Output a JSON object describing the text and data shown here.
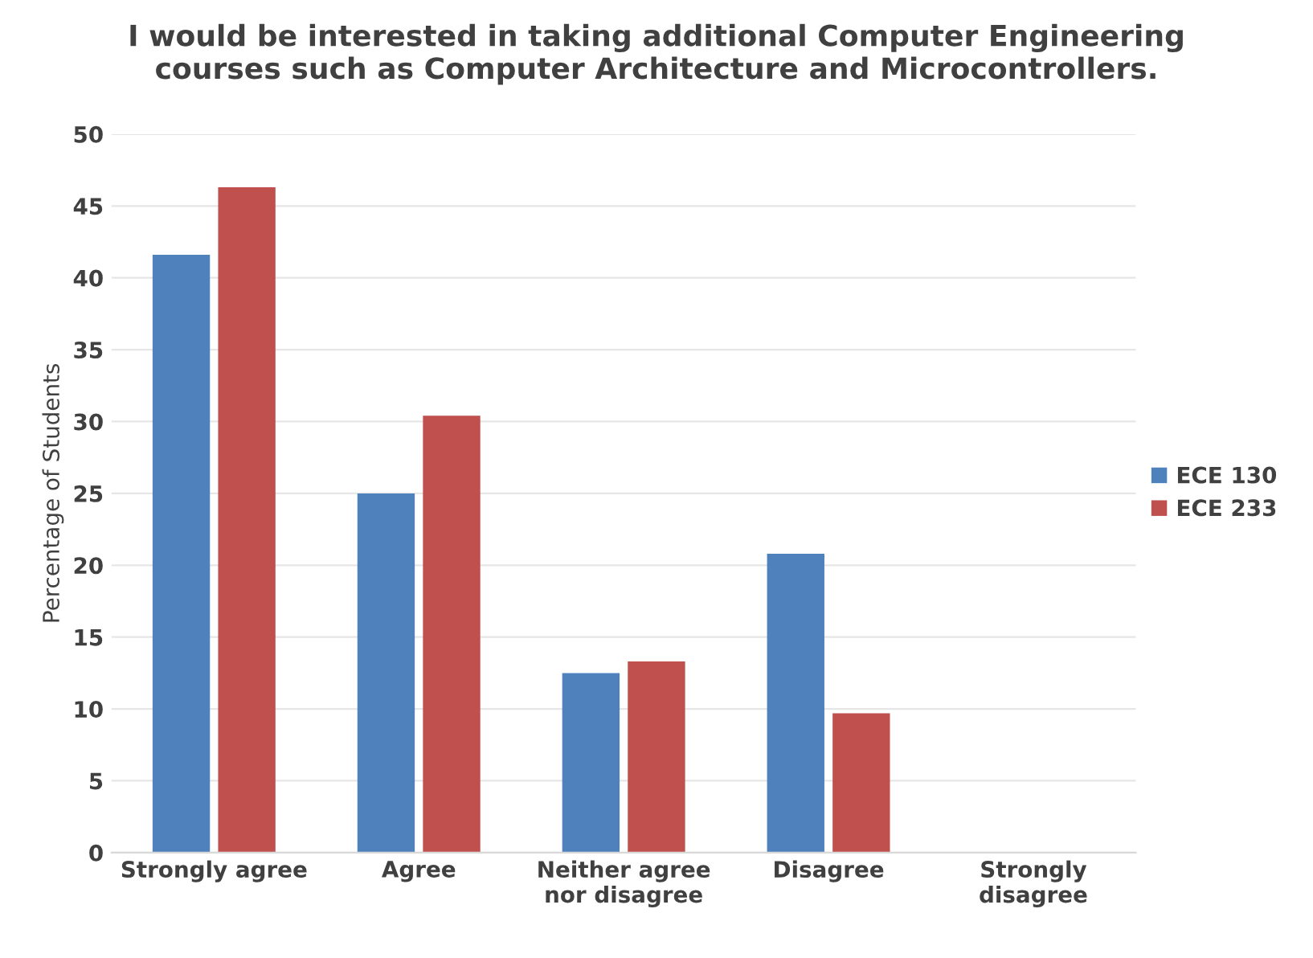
{
  "chart_data": {
    "type": "bar",
    "title": "I would be interested in taking additional Computer Engineering\ncourses such as Computer Architecture and Microcontrollers.",
    "ylabel": "Percentage of Students",
    "categories": [
      "Strongly agree",
      "Agree",
      "Neither agree\nnor disagree",
      "Disagree",
      "Strongly\ndisagree"
    ],
    "series": [
      {
        "name": "ECE 130",
        "color": "#4f81bd",
        "values": [
          41.6,
          25.0,
          12.5,
          20.8,
          0
        ]
      },
      {
        "name": "ECE 233",
        "color": "#c0504d",
        "values": [
          46.3,
          30.4,
          13.3,
          9.7,
          0
        ]
      }
    ],
    "ylim": [
      0,
      50
    ],
    "yticks": [
      0,
      5,
      10,
      15,
      20,
      25,
      30,
      35,
      40,
      45,
      50
    ],
    "grid": "y",
    "legend": "right"
  }
}
